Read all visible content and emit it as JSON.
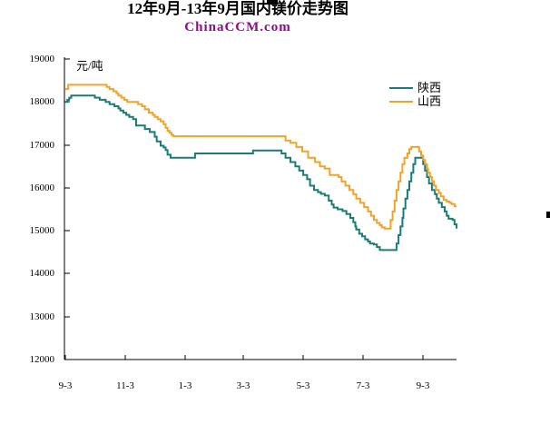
{
  "header": {
    "title": "12年9月-13年9月国内镁价走势图",
    "watermark": "ChinaCCM.com",
    "watermark_color": "#8b0b8b"
  },
  "chart_data": {
    "type": "line",
    "title": "12年9月-13年9月国内镁价走势图",
    "unit": "元/吨",
    "grid": false,
    "legend_position": "inside-top-right",
    "ylim": [
      12000,
      19000
    ],
    "y_ticks": [
      19000,
      18000,
      17000,
      16000,
      15000,
      14000,
      13000,
      12000
    ],
    "x_axis_note": "t = days since 2012-09-03; line extends ~1 month past last tick",
    "t_max": 398,
    "x_ticks": [
      {
        "label": "9-3",
        "t": 0
      },
      {
        "label": "11-3",
        "t": 61
      },
      {
        "label": "1-3",
        "t": 122
      },
      {
        "label": "3-3",
        "t": 181
      },
      {
        "label": "5-3",
        "t": 242
      },
      {
        "label": "7-3",
        "t": 303
      },
      {
        "label": "9-3",
        "t": 364
      }
    ],
    "axis_color": "#000000",
    "series": [
      {
        "name": "陕西",
        "color": "#1b7b76",
        "points": [
          [
            0,
            18000
          ],
          [
            2,
            18050
          ],
          [
            4,
            18100
          ],
          [
            6,
            18150
          ],
          [
            26,
            18150
          ],
          [
            30,
            18100
          ],
          [
            35,
            18050
          ],
          [
            41,
            18000
          ],
          [
            45,
            17950
          ],
          [
            50,
            17900
          ],
          [
            54,
            17850
          ],
          [
            56,
            17800
          ],
          [
            59,
            17750
          ],
          [
            62,
            17700
          ],
          [
            65,
            17650
          ],
          [
            69,
            17600
          ],
          [
            72,
            17450
          ],
          [
            81,
            17370
          ],
          [
            86,
            17300
          ],
          [
            91,
            17190
          ],
          [
            93,
            17080
          ],
          [
            97,
            16980
          ],
          [
            100,
            16940
          ],
          [
            102,
            16880
          ],
          [
            104,
            16770
          ],
          [
            107,
            16700
          ],
          [
            131,
            16700
          ],
          [
            132,
            16800
          ],
          [
            189,
            16800
          ],
          [
            191,
            16870
          ],
          [
            215,
            16870
          ],
          [
            220,
            16800
          ],
          [
            224,
            16700
          ],
          [
            229,
            16600
          ],
          [
            234,
            16500
          ],
          [
            238,
            16400
          ],
          [
            242,
            16300
          ],
          [
            246,
            16200
          ],
          [
            249,
            16050
          ],
          [
            253,
            15950
          ],
          [
            257,
            15900
          ],
          [
            260,
            15860
          ],
          [
            264,
            15820
          ],
          [
            268,
            15700
          ],
          [
            271,
            15610
          ],
          [
            273,
            15540
          ],
          [
            277,
            15500
          ],
          [
            282,
            15460
          ],
          [
            286,
            15390
          ],
          [
            290,
            15300
          ],
          [
            293,
            15200
          ],
          [
            295,
            15100
          ],
          [
            296,
            15030
          ],
          [
            299,
            14930
          ],
          [
            302,
            14870
          ],
          [
            305,
            14800
          ],
          [
            308,
            14750
          ],
          [
            310,
            14700
          ],
          [
            314,
            14680
          ],
          [
            317,
            14620
          ],
          [
            320,
            14550
          ],
          [
            335,
            14550
          ],
          [
            337,
            14700
          ],
          [
            339,
            14900
          ],
          [
            341,
            15100
          ],
          [
            343,
            15300
          ],
          [
            344,
            15520
          ],
          [
            346,
            15750
          ],
          [
            348,
            15950
          ],
          [
            350,
            16150
          ],
          [
            352,
            16350
          ],
          [
            354,
            16550
          ],
          [
            356,
            16700
          ],
          [
            362,
            16700
          ],
          [
            364,
            16550
          ],
          [
            366,
            16400
          ],
          [
            368,
            16250
          ],
          [
            370,
            16100
          ],
          [
            373,
            15950
          ],
          [
            376,
            15850
          ],
          [
            378,
            15750
          ],
          [
            380,
            15650
          ],
          [
            383,
            15550
          ],
          [
            386,
            15450
          ],
          [
            388,
            15350
          ],
          [
            390,
            15280
          ],
          [
            394,
            15250
          ],
          [
            396,
            15150
          ],
          [
            398,
            15050
          ]
        ]
      },
      {
        "name": "山西",
        "color": "#f0a32a",
        "points": [
          [
            0,
            18300
          ],
          [
            3,
            18400
          ],
          [
            38,
            18400
          ],
          [
            42,
            18350
          ],
          [
            45,
            18300
          ],
          [
            49,
            18250
          ],
          [
            52,
            18200
          ],
          [
            54,
            18150
          ],
          [
            57,
            18100
          ],
          [
            60,
            18050
          ],
          [
            63,
            18000
          ],
          [
            70,
            18000
          ],
          [
            74,
            17950
          ],
          [
            78,
            17900
          ],
          [
            81,
            17830
          ],
          [
            85,
            17750
          ],
          [
            89,
            17700
          ],
          [
            91,
            17650
          ],
          [
            94,
            17600
          ],
          [
            97,
            17550
          ],
          [
            100,
            17480
          ],
          [
            102,
            17400
          ],
          [
            104,
            17330
          ],
          [
            106,
            17280
          ],
          [
            108,
            17230
          ],
          [
            110,
            17200
          ],
          [
            217,
            17200
          ],
          [
            224,
            17100
          ],
          [
            229,
            17050
          ],
          [
            235,
            16950
          ],
          [
            241,
            16850
          ],
          [
            247,
            16700
          ],
          [
            254,
            16600
          ],
          [
            259,
            16500
          ],
          [
            264,
            16450
          ],
          [
            269,
            16300
          ],
          [
            278,
            16250
          ],
          [
            281,
            16150
          ],
          [
            285,
            16050
          ],
          [
            289,
            15950
          ],
          [
            293,
            15850
          ],
          [
            296,
            15750
          ],
          [
            300,
            15650
          ],
          [
            304,
            15550
          ],
          [
            308,
            15450
          ],
          [
            311,
            15350
          ],
          [
            314,
            15250
          ],
          [
            317,
            15180
          ],
          [
            320,
            15130
          ],
          [
            322,
            15080
          ],
          [
            325,
            15050
          ],
          [
            330,
            15050
          ],
          [
            331,
            15250
          ],
          [
            333,
            15450
          ],
          [
            335,
            15700
          ],
          [
            337,
            15950
          ],
          [
            339,
            16150
          ],
          [
            341,
            16350
          ],
          [
            343,
            16550
          ],
          [
            345,
            16700
          ],
          [
            348,
            16800
          ],
          [
            350,
            16900
          ],
          [
            352,
            16950
          ],
          [
            358,
            16950
          ],
          [
            360,
            16850
          ],
          [
            362,
            16750
          ],
          [
            364,
            16650
          ],
          [
            366,
            16550
          ],
          [
            368,
            16450
          ],
          [
            369,
            16350
          ],
          [
            371,
            16250
          ],
          [
            373,
            16150
          ],
          [
            375,
            16050
          ],
          [
            377,
            15950
          ],
          [
            380,
            15880
          ],
          [
            382,
            15800
          ],
          [
            385,
            15720
          ],
          [
            388,
            15680
          ],
          [
            391,
            15650
          ],
          [
            393,
            15620
          ],
          [
            396,
            15570
          ],
          [
            398,
            15570
          ]
        ]
      }
    ]
  }
}
